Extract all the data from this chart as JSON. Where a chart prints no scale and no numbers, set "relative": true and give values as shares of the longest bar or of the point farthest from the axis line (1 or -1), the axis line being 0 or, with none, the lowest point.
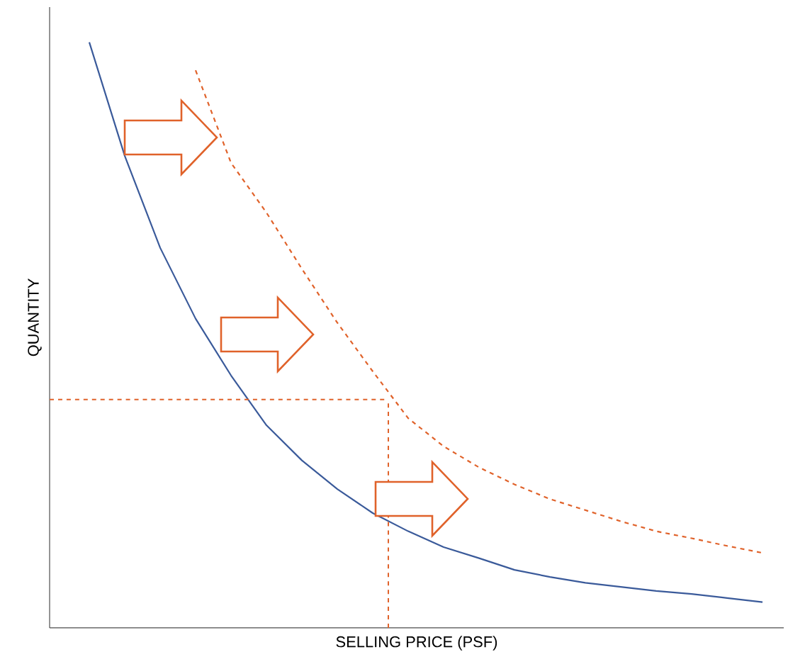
{
  "chart_data": {
    "type": "line",
    "relative": true,
    "xlabel": "SELLING PRICE (PSF)",
    "ylabel": "QUANTITY",
    "categories": [
      null,
      null,
      null,
      null,
      null,
      null,
      null,
      null,
      null,
      null,
      null,
      null,
      null,
      null,
      null,
      null,
      null,
      null,
      null,
      null
    ],
    "series": [
      {
        "color": "#3a5a9a",
        "line_style": "solid",
        "values": [
          1,
          0.806,
          0.649,
          0.528,
          0.431,
          0.346,
          0.286,
          0.237,
          0.196,
          0.165,
          0.138,
          0.119,
          0.099,
          0.087,
          0.077,
          0.07,
          0.063,
          0.058,
          0.051,
          0.044
        ]
      },
      {
        "color": "#e0622a",
        "line_style": "dashed",
        "values": [
          null,
          null,
          null,
          0.952,
          0.794,
          0.709,
          0.613,
          0.521,
          0.438,
          0.358,
          0.31,
          0.274,
          0.245,
          0.22,
          0.201,
          0.182,
          0.165,
          0.153,
          0.14,
          0.128
        ]
      }
    ],
    "ref_lines": [
      {
        "axis": "y",
        "value": 0.39,
        "color": "#e0622a",
        "line_style": "dashed"
      }
    ],
    "marker": "none"
  }
}
